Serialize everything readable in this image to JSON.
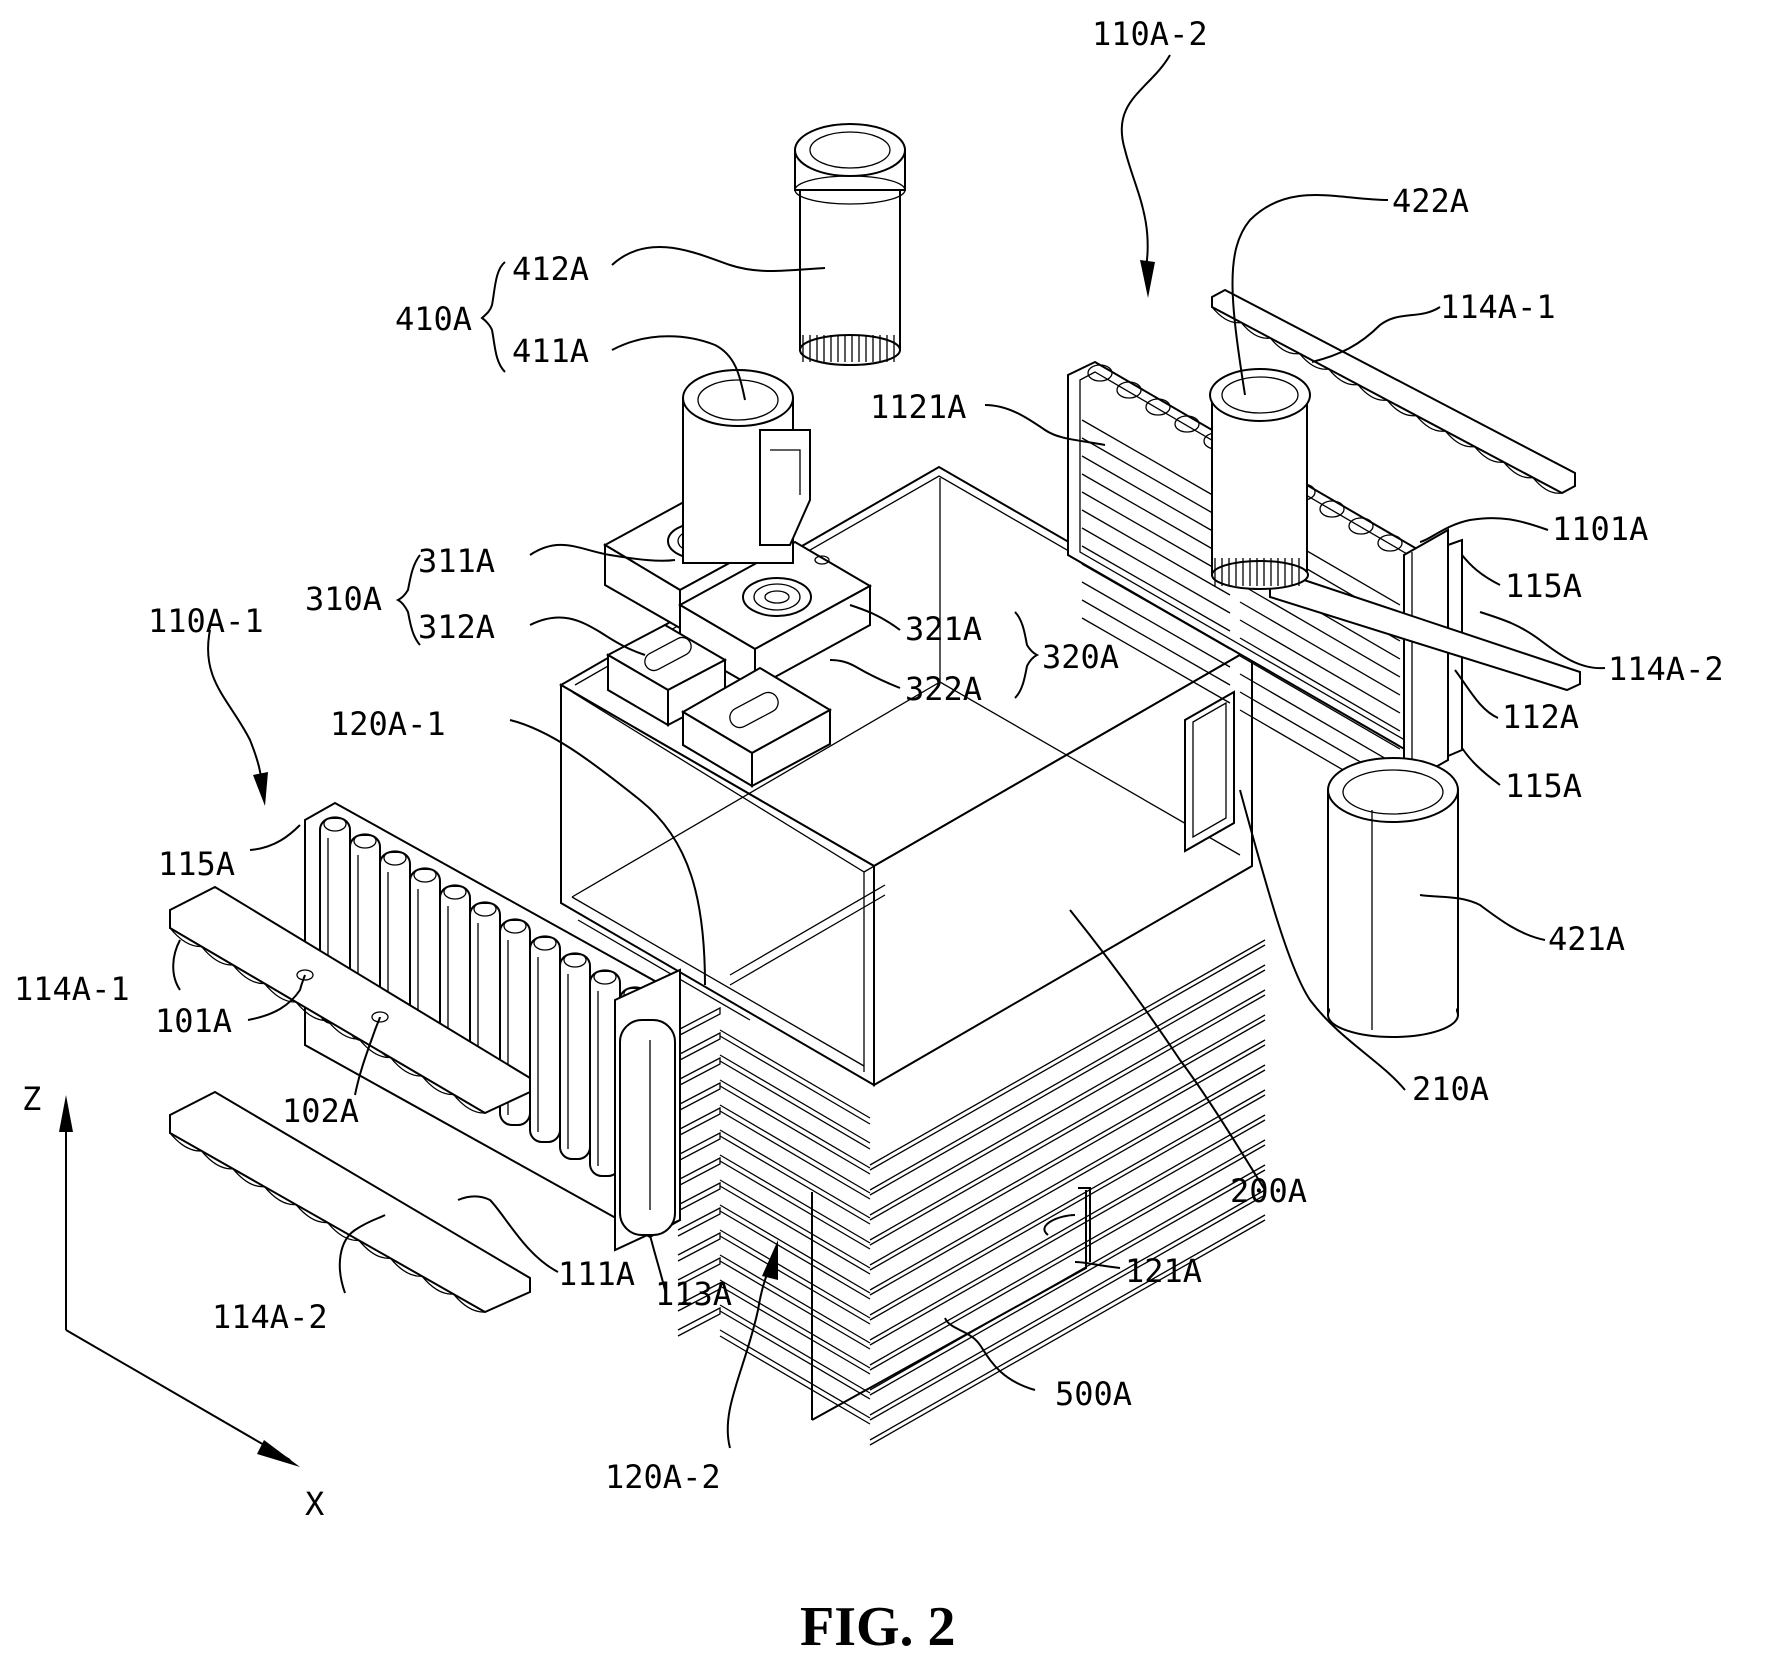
{
  "figure": {
    "caption": "FIG. 2",
    "axes": {
      "z": "Z",
      "x": "X"
    },
    "labels": {
      "l110A2": "110A-2",
      "l422A": "422A",
      "l412A": "412A",
      "l410A": "410A",
      "l411A": "411A",
      "l114A1_right": "114A-1",
      "l1121A": "1121A",
      "l1101A": "1101A",
      "l115A_r1": "115A",
      "l311A": "311A",
      "l310A": "310A",
      "l312A": "312A",
      "l321A": "321A",
      "l320A": "320A",
      "l322A": "322A",
      "l114A2_right": "114A-2",
      "l112A": "112A",
      "l110A1": "110A-1",
      "l120A1": "120A-1",
      "l115A_r2": "115A",
      "l115A_left": "115A",
      "l421A": "421A",
      "l114A1_left": "114A-1",
      "l101A": "101A",
      "l102A": "102A",
      "l210A": "210A",
      "l200A": "200A",
      "l111A": "111A",
      "l113A": "113A",
      "l121A": "121A",
      "l114A2_left": "114A-2",
      "l500A": "500A",
      "l120A2": "120A-2"
    }
  }
}
